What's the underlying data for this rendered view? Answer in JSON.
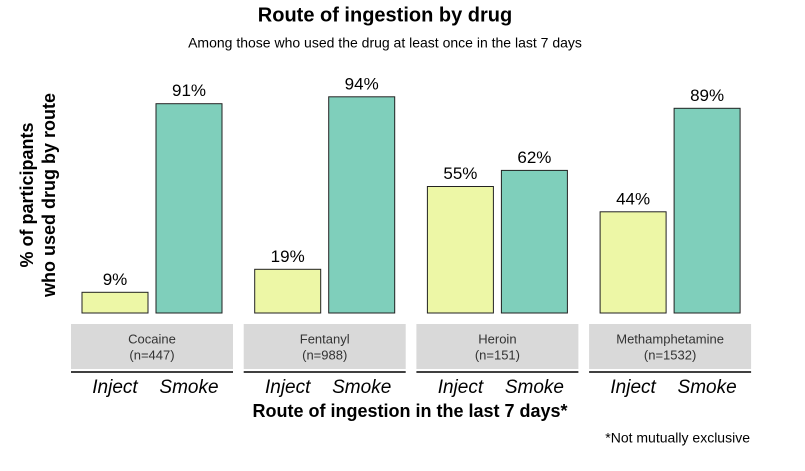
{
  "chart_data": {
    "type": "bar",
    "title": "Route of ingestion by drug",
    "subtitle": "Among those who used the drug at least once in the last 7 days",
    "ylabel": [
      "% of participants",
      "who used drug by route"
    ],
    "xlabel": "Route of ingestion in the last 7 days*",
    "note": "*Not mutually exclusive",
    "colors": [
      "#edf7a6",
      "#7fcfbb"
    ],
    "ylim": [
      0,
      100
    ],
    "facets": [
      {
        "name": "Cocaine",
        "n_label": "(n=447)",
        "categories": [
          "Inject",
          "Smoke"
        ],
        "values": [
          9,
          91
        ],
        "value_labels": [
          "9%",
          "91%"
        ]
      },
      {
        "name": "Fentanyl",
        "n_label": "(n=988)",
        "categories": [
          "Inject",
          "Smoke"
        ],
        "values": [
          19,
          94
        ],
        "value_labels": [
          "19%",
          "94%"
        ]
      },
      {
        "name": "Heroin",
        "n_label": "(n=151)",
        "categories": [
          "Inject",
          "Smoke"
        ],
        "values": [
          55,
          62
        ],
        "value_labels": [
          "55%",
          "62%"
        ]
      },
      {
        "name": "Methamphetamine",
        "n_label": "(n=1532)",
        "categories": [
          "Inject",
          "Smoke"
        ],
        "values": [
          44,
          89
        ],
        "value_labels": [
          "44%",
          "89%"
        ]
      }
    ]
  }
}
